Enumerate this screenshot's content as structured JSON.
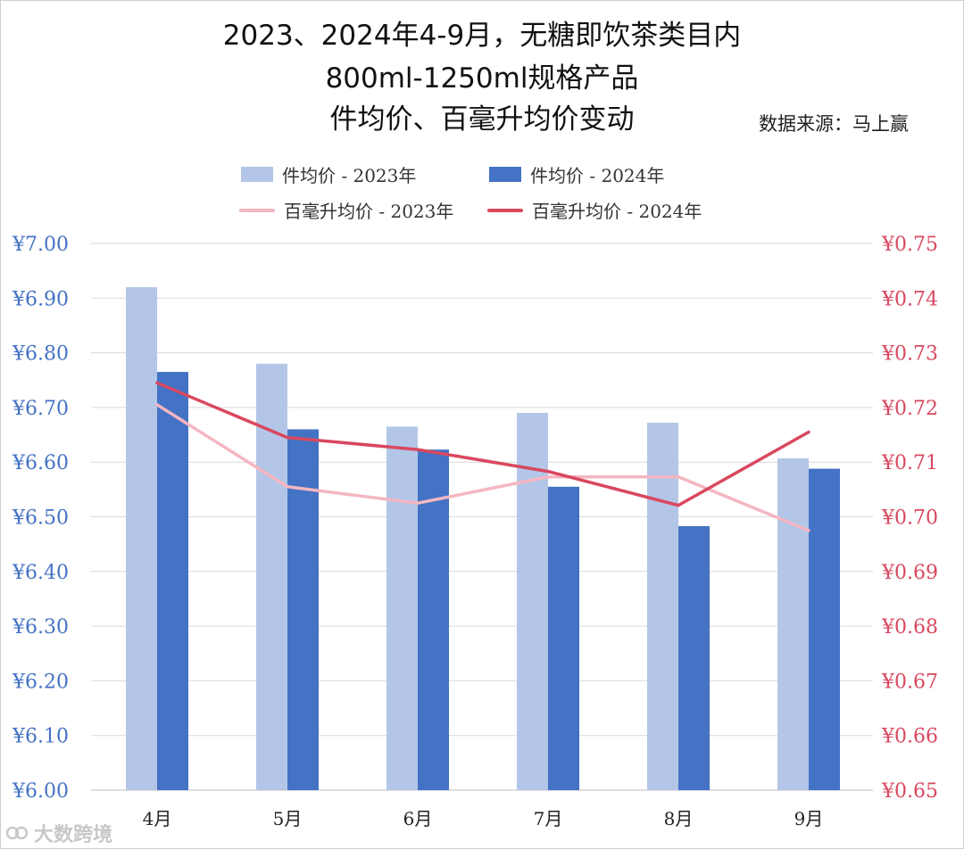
{
  "title": {
    "line1": "2023、2024年4-9月，无糖即饮茶类目内",
    "line2": "800ml-1250ml规格产品",
    "line3": "件均价、百毫升均价变动"
  },
  "source": "数据来源：马上赢",
  "watermark": "大数跨境",
  "colors": {
    "bar2023": "#b4c6e7",
    "bar2024": "#4472c4",
    "line2023": "#f4b6c2",
    "line2024": "#d9485f",
    "leftAxis": "#4472c4",
    "rightAxis": "#d9485f",
    "grid": "#d9d9d9"
  },
  "chart_data": {
    "type": "bar",
    "categories": [
      "4月",
      "5月",
      "6月",
      "7月",
      "8月",
      "9月"
    ],
    "series": [
      {
        "name": "件均价 - 2023年",
        "type": "bar",
        "axis": "left",
        "values": [
          6.92,
          6.78,
          6.665,
          6.69,
          6.672,
          6.607
        ]
      },
      {
        "name": "件均价 - 2024年",
        "type": "bar",
        "axis": "left",
        "values": [
          6.765,
          6.66,
          6.623,
          6.555,
          6.483,
          6.588
        ]
      },
      {
        "name": "百毫升均价 - 2023年",
        "type": "line",
        "axis": "right",
        "values": [
          0.7205,
          0.7055,
          0.7025,
          0.7073,
          0.7073,
          0.6975
        ]
      },
      {
        "name": "百毫升均价 - 2024年",
        "type": "line",
        "axis": "right",
        "values": [
          0.7245,
          0.7145,
          0.7123,
          0.7083,
          0.7021,
          0.7155
        ]
      }
    ],
    "y_left": {
      "min": 6.0,
      "max": 7.0,
      "step": 0.1,
      "ticks": [
        "¥6.00",
        "¥6.10",
        "¥6.20",
        "¥6.30",
        "¥6.40",
        "¥6.50",
        "¥6.60",
        "¥6.70",
        "¥6.80",
        "¥6.90",
        "¥7.00"
      ]
    },
    "y_right": {
      "min": 0.65,
      "max": 0.75,
      "step": 0.01,
      "ticks": [
        "¥0.65",
        "¥0.66",
        "¥0.67",
        "¥0.68",
        "¥0.69",
        "¥0.70",
        "¥0.71",
        "¥0.72",
        "¥0.73",
        "¥0.74",
        "¥0.75"
      ]
    },
    "grid": true,
    "legend": "top"
  }
}
